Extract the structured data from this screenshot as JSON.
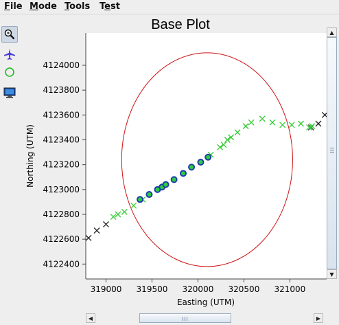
{
  "menu": {
    "file": {
      "first": "F",
      "rest": "ile"
    },
    "mode": {
      "first": "M",
      "rest": "ode"
    },
    "tools": {
      "first": "T",
      "rest": "ools"
    },
    "test": {
      "pre": "T",
      "u": "e",
      "rest": "st"
    }
  },
  "toolbar": {
    "buttons": [
      {
        "icon": "zoom-icon",
        "active": true
      },
      {
        "icon": "airplane-icon",
        "active": false
      },
      {
        "icon": "circle-icon",
        "active": false
      },
      {
        "icon": "monitor-icon",
        "active": false
      }
    ]
  },
  "chart_data": {
    "type": "scatter",
    "title": "Base Plot",
    "xlabel": "Easting (UTM)",
    "ylabel": "Northing (UTM)",
    "xlim": [
      318780,
      321400
    ],
    "ylim": [
      4122280,
      4124260
    ],
    "xticks": [
      319000,
      319500,
      320000,
      320500,
      321000
    ],
    "yticks": [
      4122400,
      4122600,
      4122800,
      4123000,
      4123200,
      4123400,
      4123600,
      4123800,
      4124000
    ],
    "grid": false,
    "colors": {
      "black_x": "#222222",
      "green_x": "#33cc33",
      "circle_fill": "#2ecc40",
      "circle_edge": "#1f3fa8",
      "ellipse": "#cc1111"
    },
    "series": [
      {
        "marker": "x",
        "color": "black",
        "x": [
          318810,
          318900,
          319000,
          321230,
          321310,
          321380
        ],
        "y": [
          4122610,
          4122670,
          4122720,
          4123500,
          4123530,
          4123600
        ]
      },
      {
        "marker": "x",
        "color": "green",
        "x": [
          319080,
          319130,
          319200,
          319300,
          319400,
          320140,
          320240,
          320280,
          320320,
          320360,
          320430,
          320520,
          320580,
          320700,
          320810,
          320920,
          321020,
          321120,
          321210,
          321240
        ],
        "y": [
          4122780,
          4122800,
          4122820,
          4122870,
          4122920,
          4123280,
          4123340,
          4123360,
          4123400,
          4123420,
          4123460,
          4123510,
          4123540,
          4123570,
          4123540,
          4123520,
          4123520,
          4123530,
          4123500,
          4123510
        ]
      },
      {
        "marker": "circle",
        "color": "green-blue",
        "x": [
          319370,
          319470,
          319560,
          319610,
          319650,
          319740,
          319840,
          319930,
          320030,
          320110
        ],
        "y": [
          4122920,
          4122960,
          4123000,
          4123020,
          4123040,
          4123080,
          4123130,
          4123180,
          4123220,
          4123260
        ]
      }
    ],
    "ellipse": {
      "cx": 320100,
      "cy": 4123240,
      "rx": 930,
      "ry": 860
    }
  }
}
